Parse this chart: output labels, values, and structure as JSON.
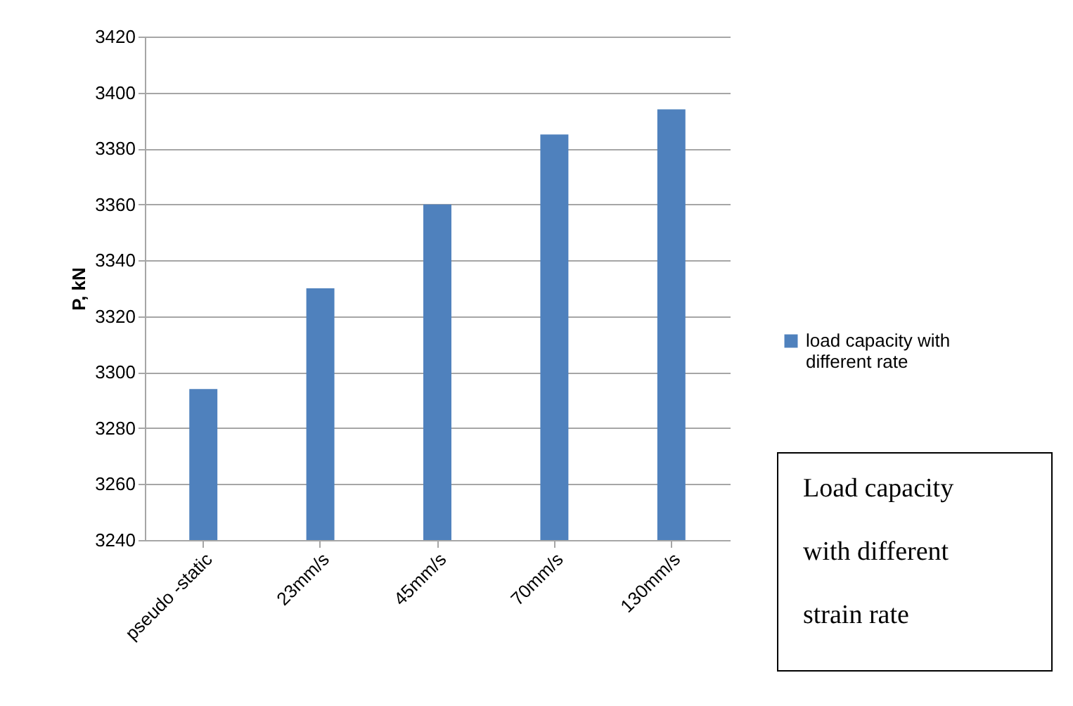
{
  "chart_data": {
    "type": "bar",
    "ylabel": "P, kN",
    "categories": [
      "pseudo -static",
      "23mm/s",
      "45mm/s",
      "70mm/s",
      "130mm/s"
    ],
    "series": [
      {
        "name": "load capacity with different rate",
        "color": "#4f81bd",
        "values": [
          3294,
          3330,
          3360,
          3385,
          3394
        ]
      }
    ],
    "ylim": [
      3240,
      3420
    ],
    "yticks": [
      3240,
      3260,
      3280,
      3300,
      3320,
      3340,
      3360,
      3380,
      3400,
      3420
    ],
    "grid": "y",
    "legend": "right",
    "annotations": [
      "Load capacity with different strain rate"
    ]
  }
}
